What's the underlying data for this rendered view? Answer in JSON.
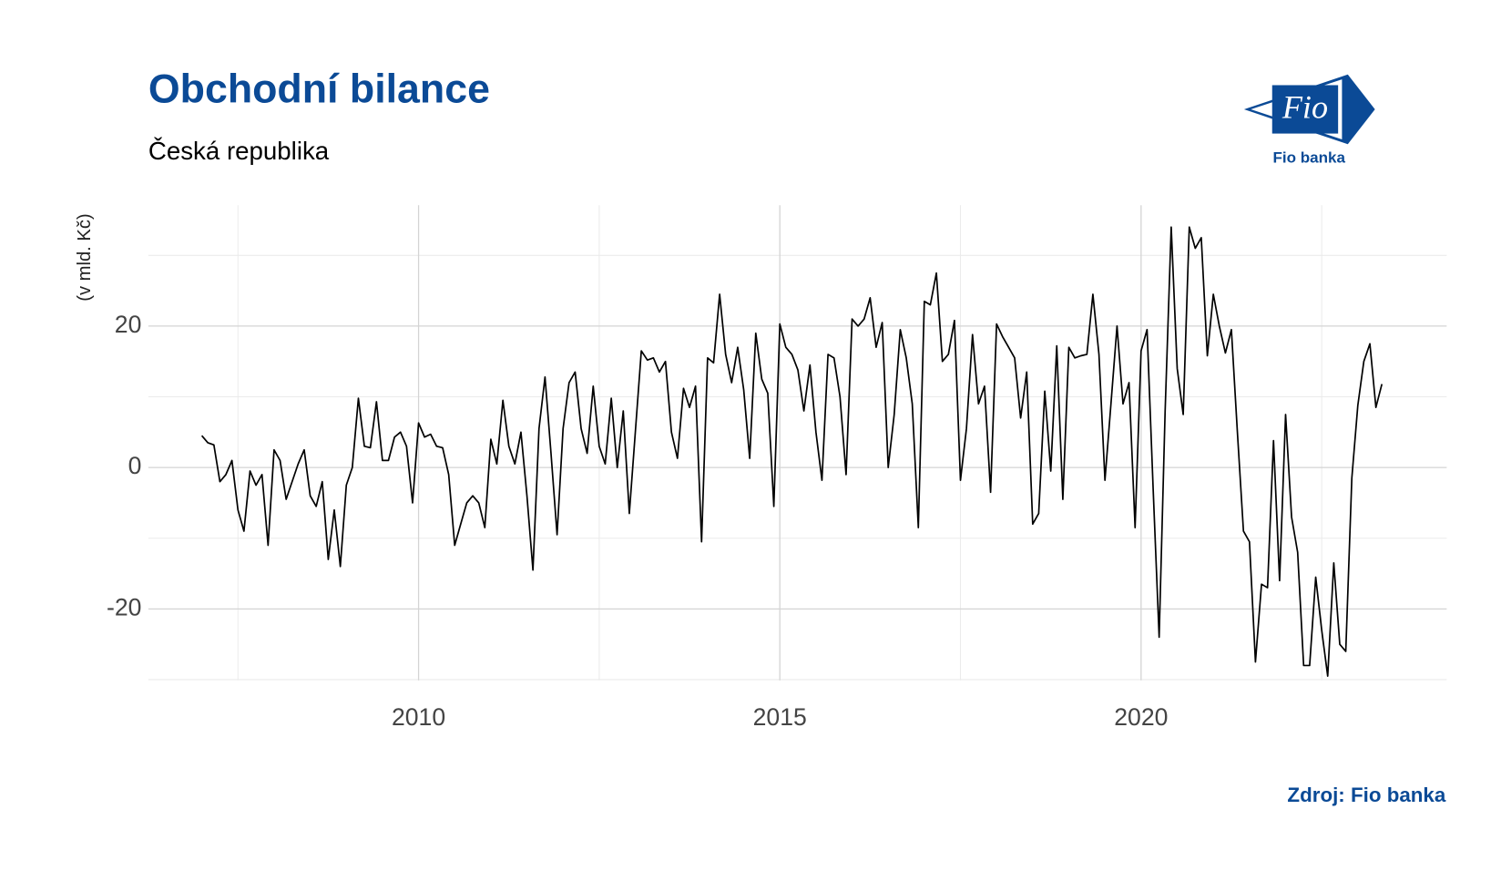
{
  "chart_data": {
    "type": "line",
    "title": "Obchodní bilance",
    "subtitle": "Česká republika",
    "y_label": "(v mld. Kč)",
    "source": "Zdroj: Fio banka",
    "logo_text": "Fio",
    "logo_caption": "Fio banka",
    "color": "#000000",
    "grid": true,
    "xlim": [
      2006.26,
      2024.23
    ],
    "ylim": [
      -30.1,
      37.1
    ],
    "xticks": [
      2010,
      2015,
      2020
    ],
    "yticks": [
      -20,
      0,
      20
    ],
    "xminorticks": [
      2007.5,
      2012.5,
      2017.5,
      2022.5
    ],
    "yminorticks": [
      -30,
      -10,
      10,
      30
    ],
    "x": [
      2007.0,
      2007.083,
      2007.167,
      2007.25,
      2007.333,
      2007.417,
      2007.5,
      2007.583,
      2007.667,
      2007.75,
      2007.833,
      2007.917,
      2008.0,
      2008.083,
      2008.167,
      2008.25,
      2008.333,
      2008.417,
      2008.5,
      2008.583,
      2008.667,
      2008.75,
      2008.833,
      2008.917,
      2009.0,
      2009.083,
      2009.167,
      2009.25,
      2009.333,
      2009.417,
      2009.5,
      2009.583,
      2009.667,
      2009.75,
      2009.833,
      2009.917,
      2010.0,
      2010.083,
      2010.167,
      2010.25,
      2010.333,
      2010.417,
      2010.5,
      2010.583,
      2010.667,
      2010.75,
      2010.833,
      2010.917,
      2011.0,
      2011.083,
      2011.167,
      2011.25,
      2011.333,
      2011.417,
      2011.5,
      2011.583,
      2011.667,
      2011.75,
      2011.833,
      2011.917,
      2012.0,
      2012.083,
      2012.167,
      2012.25,
      2012.333,
      2012.417,
      2012.5,
      2012.583,
      2012.667,
      2012.75,
      2012.833,
      2012.917,
      2013.0,
      2013.083,
      2013.167,
      2013.25,
      2013.333,
      2013.417,
      2013.5,
      2013.583,
      2013.667,
      2013.75,
      2013.833,
      2013.917,
      2014.0,
      2014.083,
      2014.167,
      2014.25,
      2014.333,
      2014.417,
      2014.5,
      2014.583,
      2014.667,
      2014.75,
      2014.833,
      2014.917,
      2015.0,
      2015.083,
      2015.167,
      2015.25,
      2015.333,
      2015.417,
      2015.5,
      2015.583,
      2015.667,
      2015.75,
      2015.833,
      2015.917,
      2016.0,
      2016.083,
      2016.167,
      2016.25,
      2016.333,
      2016.417,
      2016.5,
      2016.583,
      2016.667,
      2016.75,
      2016.833,
      2016.917,
      2017.0,
      2017.083,
      2017.167,
      2017.25,
      2017.333,
      2017.417,
      2017.5,
      2017.583,
      2017.667,
      2017.75,
      2017.833,
      2017.917,
      2018.0,
      2018.083,
      2018.167,
      2018.25,
      2018.333,
      2018.417,
      2018.5,
      2018.583,
      2018.667,
      2018.75,
      2018.833,
      2018.917,
      2019.0,
      2019.083,
      2019.167,
      2019.25,
      2019.333,
      2019.417,
      2019.5,
      2019.583,
      2019.667,
      2019.75,
      2019.833,
      2019.917,
      2020.0,
      2020.083,
      2020.167,
      2020.25,
      2020.333,
      2020.417,
      2020.5,
      2020.583,
      2020.667,
      2020.75,
      2020.833,
      2020.917,
      2021.0,
      2021.083,
      2021.167,
      2021.25,
      2021.333,
      2021.417,
      2021.5,
      2021.583,
      2021.667,
      2021.75,
      2021.833,
      2021.917,
      2022.0,
      2022.083,
      2022.167,
      2022.25,
      2022.333,
      2022.417,
      2022.5,
      2022.583,
      2022.667,
      2022.75,
      2022.833,
      2022.917,
      2023.0,
      2023.083,
      2023.167,
      2023.25,
      2023.333
    ],
    "values": [
      4.5,
      3.5,
      3.2,
      -2,
      -1,
      1,
      -6,
      -9,
      -0.5,
      -2.5,
      -1,
      -11,
      2.5,
      1,
      -4.5,
      -2,
      0.5,
      2.5,
      -4,
      -5.5,
      -2,
      -13,
      -6,
      -14,
      -2.5,
      0,
      9.8,
      3,
      2.8,
      9.3,
      1,
      1,
      4.3,
      5,
      3,
      -5,
      6.3,
      4.3,
      4.7,
      3,
      2.8,
      -1,
      -11,
      -8,
      -5,
      -4,
      -5,
      -8.5,
      4,
      0.5,
      9.5,
      3,
      0.5,
      5,
      -4,
      -14.5,
      5.5,
      12.8,
      2,
      -9.5,
      5.5,
      12,
      13.5,
      5.5,
      2,
      11.5,
      3,
      0.5,
      9.8,
      0,
      8,
      -6.5,
      5,
      16.5,
      15.2,
      15.5,
      13.5,
      15,
      5,
      1.3,
      11.2,
      8.5,
      11.5,
      -10.5,
      15.5,
      14.8,
      24.5,
      16,
      12,
      17,
      11,
      1.3,
      19,
      12.5,
      10.5,
      -5.5,
      20.3,
      17,
      16,
      13.8,
      8,
      14.5,
      5,
      -1.8,
      16,
      15.5,
      10,
      -1,
      21,
      20,
      21,
      24,
      17,
      20.5,
      0,
      7.5,
      19.5,
      15.5,
      9,
      -8.5,
      23.5,
      23,
      27.5,
      15,
      16,
      20.8,
      -1.8,
      5.5,
      18.8,
      9,
      11.5,
      -3.5,
      20.3,
      18.5,
      17,
      15.5,
      7,
      13.5,
      -8,
      -6.5,
      10.8,
      -0.5,
      17.2,
      -4.5,
      17,
      15.5,
      15.8,
      16,
      24.5,
      16,
      -1.8,
      9,
      20,
      9,
      12,
      -8.5,
      16.5,
      19.5,
      -3,
      -24,
      8,
      34,
      14,
      7.5,
      34,
      31,
      32.5,
      15.8,
      24.5,
      20,
      16.2,
      19.5,
      5,
      -9,
      -10.5,
      -27.5,
      -16.5,
      -17,
      3.8,
      -16,
      7.5,
      -7,
      -12,
      -28,
      -28,
      -15.5,
      -23,
      -29.5,
      -13.5,
      -25,
      -26,
      -1.5,
      8.8,
      15,
      17.5,
      8.5,
      11.8
    ]
  }
}
